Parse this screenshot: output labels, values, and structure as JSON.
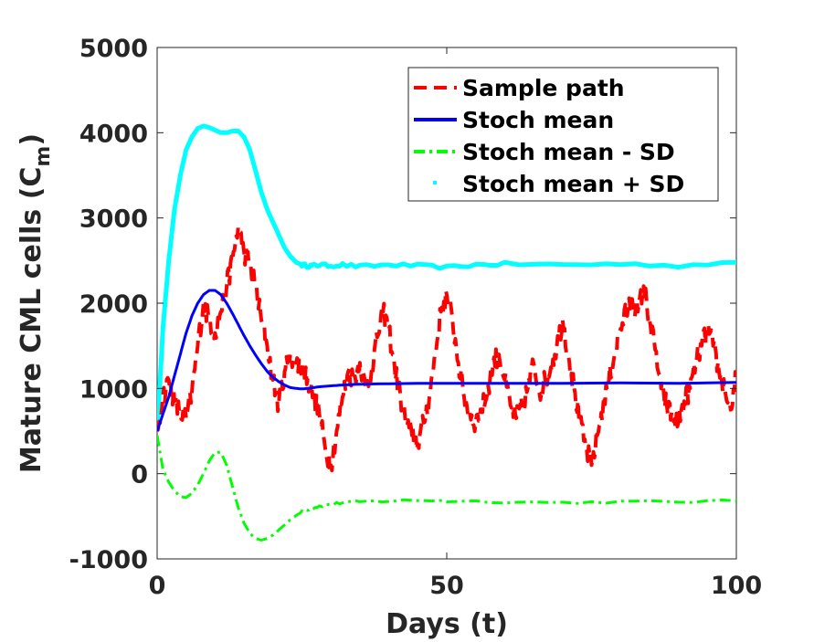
{
  "chart_data": {
    "type": "line",
    "xlabel": "Days (t)",
    "ylabel": "Mature CML cells (C",
    "ylabel_sub": "m",
    "ylabel_close": ")",
    "xlim": [
      0,
      100
    ],
    "ylim": [
      -1000,
      5000
    ],
    "xticks": [
      0,
      50,
      100
    ],
    "yticks": [
      -1000,
      0,
      1000,
      2000,
      3000,
      4000,
      5000
    ],
    "grid": false,
    "legend_position": "top-right",
    "series": [
      {
        "name": "Sample path",
        "color": "#ff0000",
        "style": "dashed",
        "noisy": true,
        "x": [
          0,
          1,
          2,
          3,
          4,
          5,
          6,
          7,
          8,
          9,
          10,
          11,
          12,
          13,
          14,
          15,
          16,
          17,
          18,
          19,
          20,
          21,
          22,
          23,
          24,
          25,
          26,
          27,
          28,
          29,
          30,
          31,
          32,
          33,
          34,
          35,
          36,
          37,
          38,
          39,
          40,
          41,
          42,
          43,
          44,
          45,
          46,
          47,
          48,
          49,
          50,
          51,
          52,
          53,
          54,
          55,
          56,
          57,
          58,
          59,
          60,
          61,
          62,
          63,
          64,
          65,
          66,
          67,
          68,
          69,
          70,
          71,
          72,
          73,
          74,
          75,
          76,
          77,
          78,
          79,
          80,
          81,
          82,
          83,
          84,
          85,
          86,
          87,
          88,
          89,
          90,
          91,
          92,
          93,
          94,
          95,
          96,
          97,
          98,
          99,
          100
        ],
        "values": [
          500,
          900,
          1100,
          850,
          700,
          650,
          950,
          1500,
          2000,
          1800,
          1650,
          1900,
          2200,
          2500,
          2900,
          2600,
          2450,
          2200,
          1800,
          1500,
          1100,
          800,
          1200,
          1400,
          1300,
          1250,
          1100,
          900,
          700,
          300,
          100,
          500,
          900,
          1200,
          1100,
          1300,
          1000,
          1200,
          1600,
          1900,
          1700,
          1250,
          900,
          600,
          450,
          350,
          600,
          900,
          1400,
          1900,
          2100,
          1800,
          1300,
          900,
          700,
          600,
          750,
          950,
          1300,
          1400,
          1100,
          800,
          650,
          800,
          1000,
          1300,
          950,
          1100,
          1250,
          1500,
          1800,
          1400,
          1000,
          600,
          300,
          100,
          450,
          800,
          1100,
          1400,
          1700,
          1900,
          2050,
          1900,
          2200,
          1800,
          1450,
          1000,
          800,
          650,
          600,
          850,
          1000,
          1300,
          1500,
          1700,
          1500,
          1200,
          1000,
          750,
          1150
        ]
      },
      {
        "name": "Stoch mean",
        "color": "#0000ff",
        "style": "solid",
        "noisy": false,
        "x": [
          0,
          1,
          2,
          3,
          4,
          5,
          6,
          7,
          8,
          9,
          10,
          11,
          12,
          13,
          14,
          15,
          16,
          17,
          18,
          19,
          20,
          21,
          22,
          23,
          24,
          25,
          26,
          27,
          28,
          30,
          32,
          35,
          40,
          45,
          50,
          60,
          70,
          80,
          90,
          100
        ],
        "values": [
          500,
          700,
          900,
          1150,
          1400,
          1650,
          1850,
          2000,
          2100,
          2150,
          2150,
          2100,
          2000,
          1880,
          1750,
          1620,
          1500,
          1390,
          1290,
          1200,
          1130,
          1080,
          1040,
          1010,
          1000,
          995,
          1000,
          1010,
          1020,
          1030,
          1040,
          1050,
          1055,
          1060,
          1060,
          1060,
          1060,
          1065,
          1060,
          1070
        ]
      },
      {
        "name": "Stoch mean - SD",
        "color": "#00ff00",
        "style": "dashdot",
        "noisy": false,
        "x": [
          0,
          1,
          2,
          3,
          4,
          5,
          6,
          7,
          8,
          9,
          10,
          11,
          12,
          13,
          14,
          15,
          16,
          17,
          18,
          19,
          20,
          21,
          22,
          23,
          24,
          25,
          26,
          27,
          28,
          30,
          32,
          35,
          40,
          45,
          50,
          60,
          70,
          80,
          90,
          100
        ],
        "values": [
          450,
          50,
          -100,
          -200,
          -270,
          -280,
          -230,
          -130,
          0,
          150,
          250,
          250,
          100,
          -150,
          -400,
          -580,
          -700,
          -760,
          -780,
          -760,
          -720,
          -660,
          -600,
          -540,
          -490,
          -450,
          -420,
          -400,
          -380,
          -360,
          -340,
          -330,
          -320,
          -310,
          -320,
          -330,
          -340,
          -330,
          -330,
          -320
        ]
      },
      {
        "name": "Stoch mean + SD",
        "color": "#00ffff",
        "style": "dotted",
        "noisy": false,
        "x": [
          0,
          1,
          2,
          3,
          4,
          5,
          6,
          7,
          8,
          9,
          10,
          11,
          12,
          13,
          14,
          15,
          16,
          17,
          18,
          19,
          20,
          21,
          22,
          23,
          24,
          25,
          26,
          27,
          28,
          30,
          32,
          35,
          40,
          45,
          50,
          55,
          60,
          70,
          80,
          90,
          100
        ],
        "values": [
          500,
          1700,
          2500,
          3100,
          3500,
          3800,
          3950,
          4050,
          4080,
          4060,
          4030,
          4000,
          4000,
          4020,
          4020,
          3950,
          3800,
          3550,
          3300,
          3100,
          2950,
          2800,
          2650,
          2550,
          2480,
          2450,
          2440,
          2440,
          2450,
          2440,
          2450,
          2430,
          2450,
          2440,
          2420,
          2450,
          2460,
          2450,
          2460,
          2440,
          2480
        ]
      }
    ]
  }
}
